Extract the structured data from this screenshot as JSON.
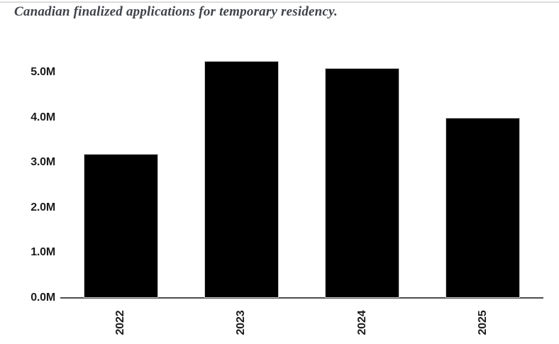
{
  "chart_data": {
    "type": "bar",
    "title": "Canadian finalized applications for temporary residency.",
    "categories": [
      "2022",
      "2023",
      "2024",
      "2025"
    ],
    "values": [
      3.2,
      5.25,
      5.1,
      4.0
    ],
    "unit": "M",
    "xlabel": "",
    "ylabel": "",
    "ylim": [
      0,
      5.5
    ],
    "yticks": [
      0,
      1,
      2,
      3,
      4,
      5
    ],
    "ytick_labels": [
      "0.0M",
      "1.0M",
      "2.0M",
      "3.0M",
      "4.0M",
      "5.0M"
    ],
    "grid": false,
    "legend": false,
    "bar_color": "#000000",
    "bar_edge_color": "#cccccc",
    "axis_color": "#4d4d4d",
    "tick_label_color": "#1c1c1c",
    "title_color": "#3f434a"
  }
}
